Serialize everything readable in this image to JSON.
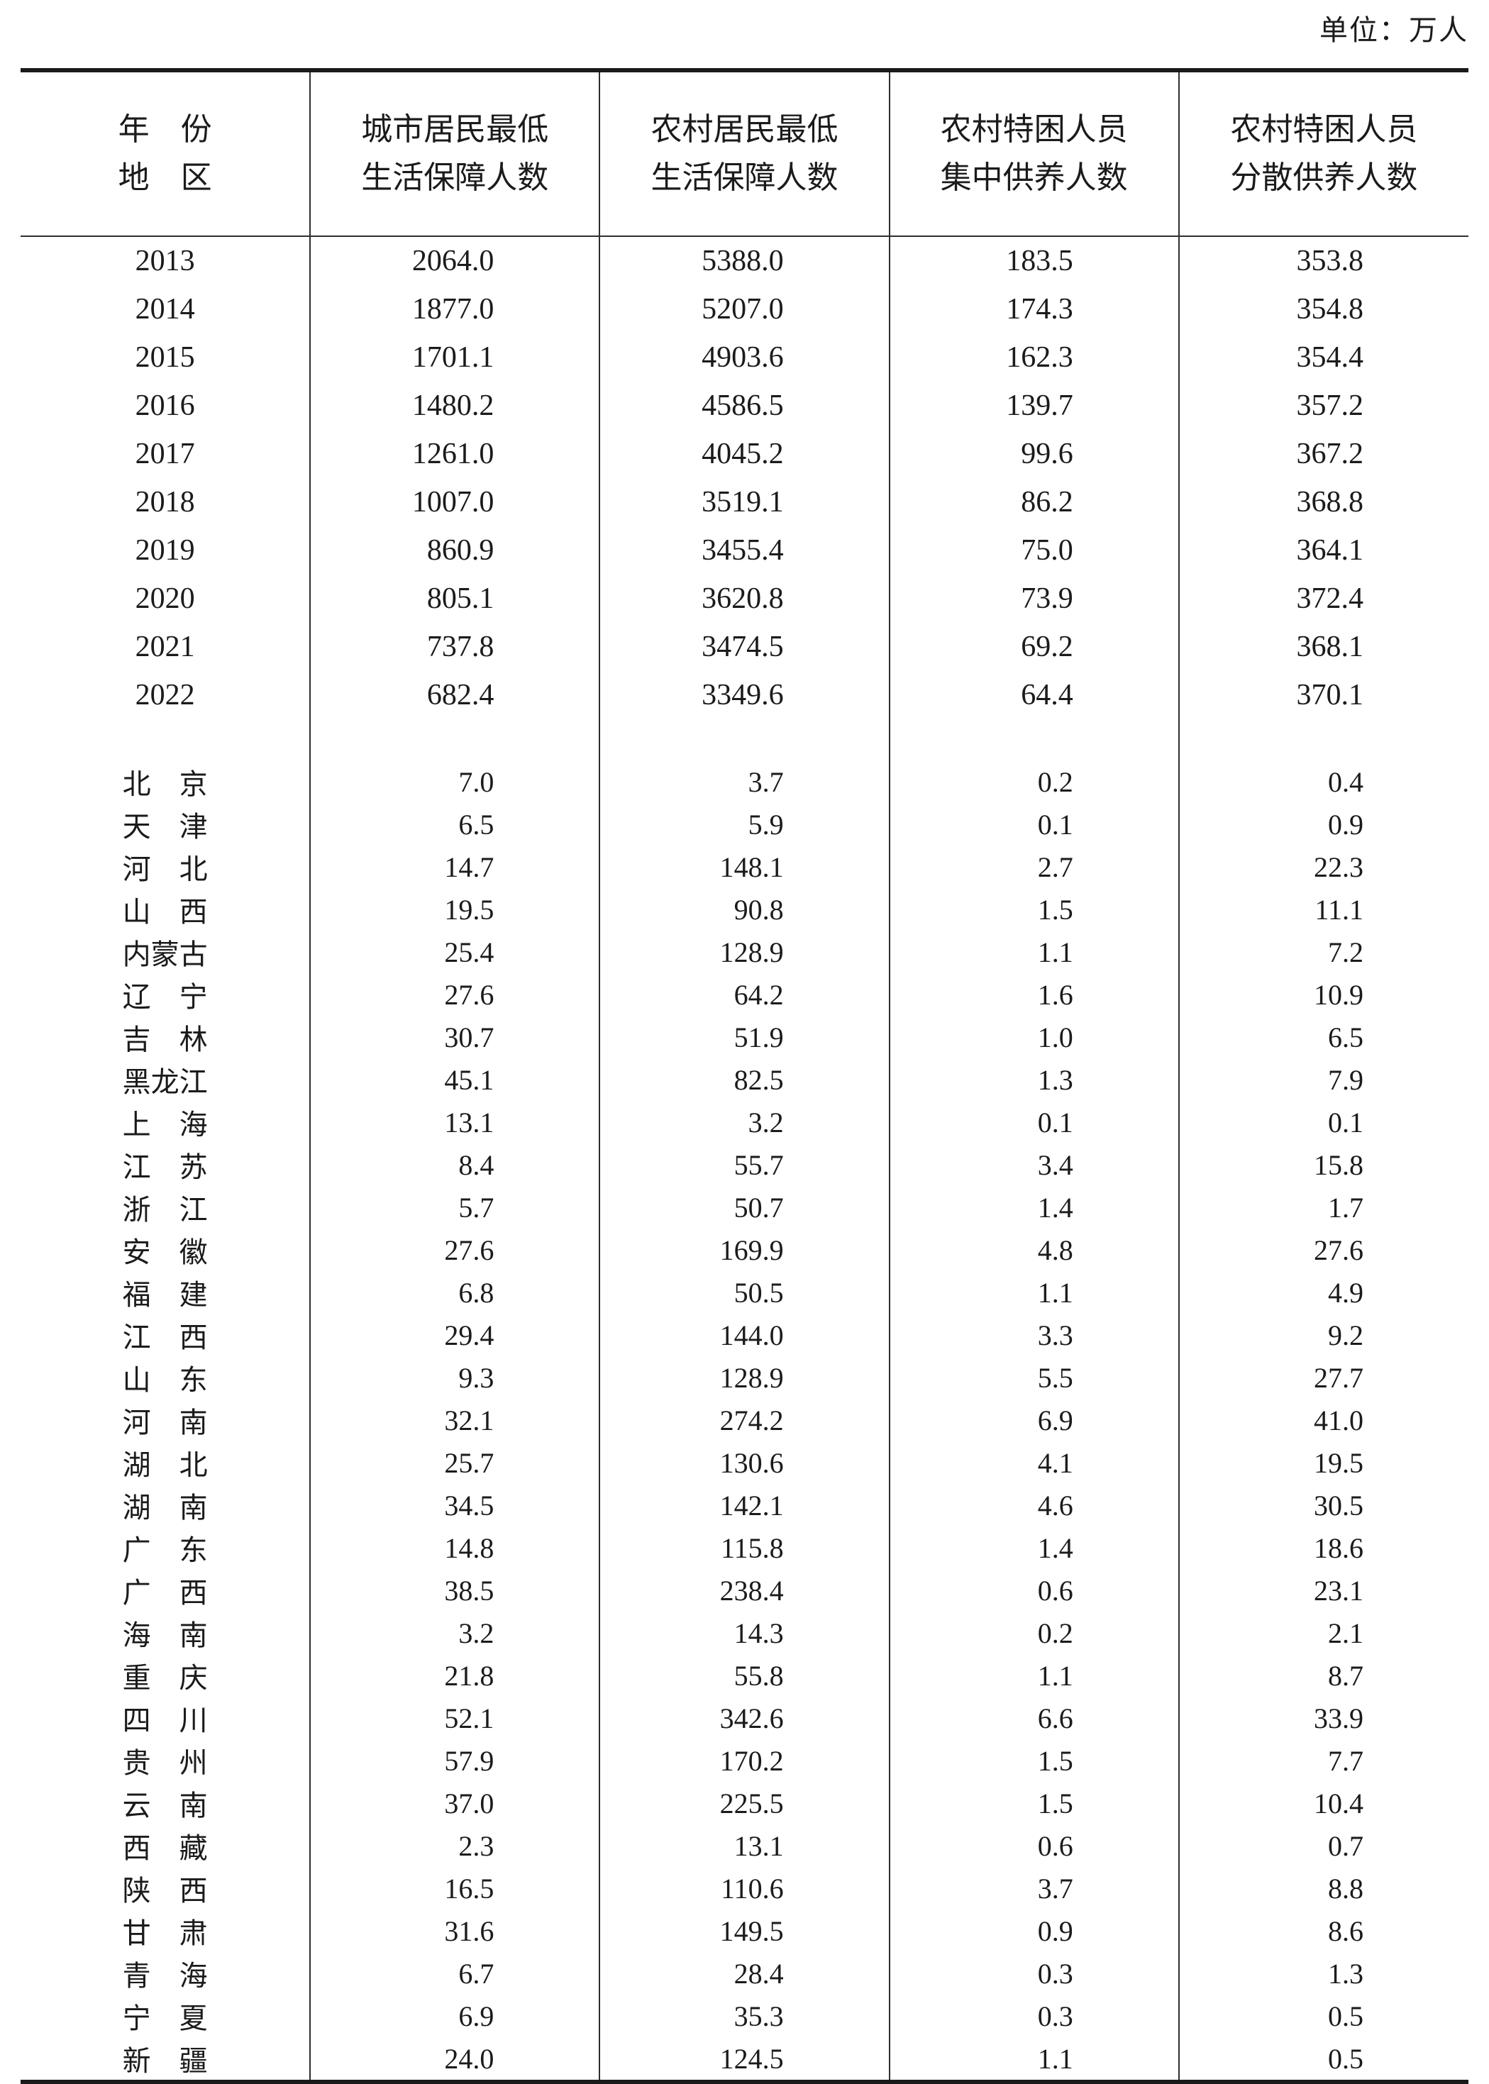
{
  "unit_label": "单位：万人",
  "table": {
    "header": {
      "col0_line1": "年　份",
      "col0_line2": "地　区",
      "columns": [
        {
          "line1": "城市居民最低",
          "line2": "生活保障人数"
        },
        {
          "line1": "农村居民最低",
          "line2": "生活保障人数"
        },
        {
          "line1": "农村特困人员",
          "line2": "集中供养人数"
        },
        {
          "line1": "农村特困人员",
          "line2": "分散供养人数"
        }
      ]
    },
    "year_rows": [
      {
        "label": "2013",
        "values": [
          "2064.0",
          "5388.0",
          "183.5",
          "353.8"
        ]
      },
      {
        "label": "2014",
        "values": [
          "1877.0",
          "5207.0",
          "174.3",
          "354.8"
        ]
      },
      {
        "label": "2015",
        "values": [
          "1701.1",
          "4903.6",
          "162.3",
          "354.4"
        ]
      },
      {
        "label": "2016",
        "values": [
          "1480.2",
          "4586.5",
          "139.7",
          "357.2"
        ]
      },
      {
        "label": "2017",
        "values": [
          "1261.0",
          "4045.2",
          "99.6",
          "367.2"
        ]
      },
      {
        "label": "2018",
        "values": [
          "1007.0",
          "3519.1",
          "86.2",
          "368.8"
        ]
      },
      {
        "label": "2019",
        "values": [
          "860.9",
          "3455.4",
          "75.0",
          "364.1"
        ]
      },
      {
        "label": "2020",
        "values": [
          "805.1",
          "3620.8",
          "73.9",
          "372.4"
        ]
      },
      {
        "label": "2021",
        "values": [
          "737.8",
          "3474.5",
          "69.2",
          "368.1"
        ]
      },
      {
        "label": "2022",
        "values": [
          "682.4",
          "3349.6",
          "64.4",
          "370.1"
        ]
      }
    ],
    "region_rows": [
      {
        "label": "北　京",
        "values": [
          "7.0",
          "3.7",
          "0.2",
          "0.4"
        ]
      },
      {
        "label": "天　津",
        "values": [
          "6.5",
          "5.9",
          "0.1",
          "0.9"
        ]
      },
      {
        "label": "河　北",
        "values": [
          "14.7",
          "148.1",
          "2.7",
          "22.3"
        ]
      },
      {
        "label": "山　西",
        "values": [
          "19.5",
          "90.8",
          "1.5",
          "11.1"
        ]
      },
      {
        "label": "内蒙古",
        "values": [
          "25.4",
          "128.9",
          "1.1",
          "7.2"
        ]
      },
      {
        "label": "辽　宁",
        "values": [
          "27.6",
          "64.2",
          "1.6",
          "10.9"
        ]
      },
      {
        "label": "吉　林",
        "values": [
          "30.7",
          "51.9",
          "1.0",
          "6.5"
        ]
      },
      {
        "label": "黑龙江",
        "values": [
          "45.1",
          "82.5",
          "1.3",
          "7.9"
        ]
      },
      {
        "label": "上　海",
        "values": [
          "13.1",
          "3.2",
          "0.1",
          "0.1"
        ]
      },
      {
        "label": "江　苏",
        "values": [
          "8.4",
          "55.7",
          "3.4",
          "15.8"
        ]
      },
      {
        "label": "浙　江",
        "values": [
          "5.7",
          "50.7",
          "1.4",
          "1.7"
        ]
      },
      {
        "label": "安　徽",
        "values": [
          "27.6",
          "169.9",
          "4.8",
          "27.6"
        ]
      },
      {
        "label": "福　建",
        "values": [
          "6.8",
          "50.5",
          "1.1",
          "4.9"
        ]
      },
      {
        "label": "江　西",
        "values": [
          "29.4",
          "144.0",
          "3.3",
          "9.2"
        ]
      },
      {
        "label": "山　东",
        "values": [
          "9.3",
          "128.9",
          "5.5",
          "27.7"
        ]
      },
      {
        "label": "河　南",
        "values": [
          "32.1",
          "274.2",
          "6.9",
          "41.0"
        ]
      },
      {
        "label": "湖　北",
        "values": [
          "25.7",
          "130.6",
          "4.1",
          "19.5"
        ]
      },
      {
        "label": "湖　南",
        "values": [
          "34.5",
          "142.1",
          "4.6",
          "30.5"
        ]
      },
      {
        "label": "广　东",
        "values": [
          "14.8",
          "115.8",
          "1.4",
          "18.6"
        ]
      },
      {
        "label": "广　西",
        "values": [
          "38.5",
          "238.4",
          "0.6",
          "23.1"
        ]
      },
      {
        "label": "海　南",
        "values": [
          "3.2",
          "14.3",
          "0.2",
          "2.1"
        ]
      },
      {
        "label": "重　庆",
        "values": [
          "21.8",
          "55.8",
          "1.1",
          "8.7"
        ]
      },
      {
        "label": "四　川",
        "values": [
          "52.1",
          "342.6",
          "6.6",
          "33.9"
        ]
      },
      {
        "label": "贵　州",
        "values": [
          "57.9",
          "170.2",
          "1.5",
          "7.7"
        ]
      },
      {
        "label": "云　南",
        "values": [
          "37.0",
          "225.5",
          "1.5",
          "10.4"
        ]
      },
      {
        "label": "西　藏",
        "values": [
          "2.3",
          "13.1",
          "0.6",
          "0.7"
        ]
      },
      {
        "label": "陕　西",
        "values": [
          "16.5",
          "110.6",
          "3.7",
          "8.8"
        ]
      },
      {
        "label": "甘　肃",
        "values": [
          "31.6",
          "149.5",
          "0.9",
          "8.6"
        ]
      },
      {
        "label": "青　海",
        "values": [
          "6.7",
          "28.4",
          "0.3",
          "1.3"
        ]
      },
      {
        "label": "宁　夏",
        "values": [
          "6.9",
          "35.3",
          "0.3",
          "0.5"
        ]
      },
      {
        "label": "新　疆",
        "values": [
          "24.0",
          "124.5",
          "1.1",
          "0.5"
        ]
      }
    ]
  }
}
